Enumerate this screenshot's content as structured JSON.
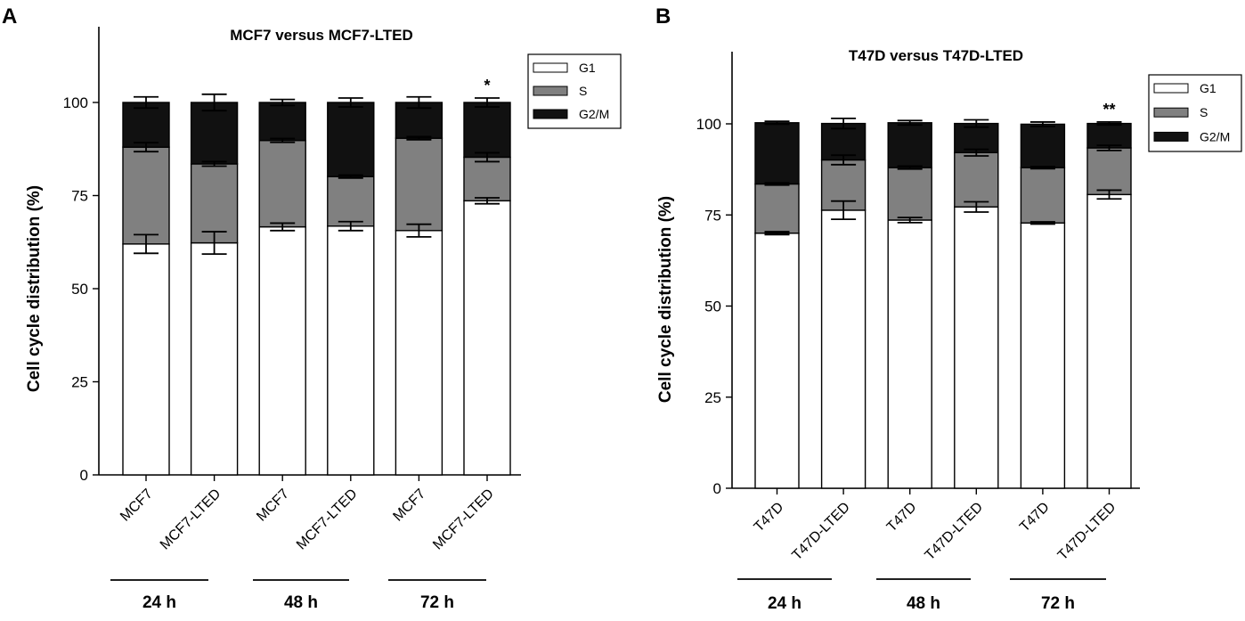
{
  "chart_data": [
    {
      "type": "bar",
      "stacked": true,
      "panel": "A",
      "title": "MCF7 versus MCF7-LTED",
      "ylabel": "Cell cycle distribution (%)",
      "xlabel": "",
      "ylim": [
        0,
        120
      ],
      "yticks": [
        "0",
        "25",
        "50",
        "75",
        "100"
      ],
      "categories": [
        "MCF7",
        "MCF7-LTED",
        "MCF7",
        "MCF7-LTED",
        "MCF7",
        "MCF7-LTED"
      ],
      "groups": [
        "24 h",
        "48 h",
        "72 h"
      ],
      "series": [
        {
          "name": "G1",
          "color": "#ffffff",
          "values": [
            62,
            62.3,
            66.6,
            66.8,
            65.6,
            73.6
          ],
          "errors": [
            2.5,
            3,
            1,
            1.2,
            1.7,
            0.8
          ]
        },
        {
          "name": "S",
          "color": "#808080",
          "values": [
            26,
            21.2,
            23.2,
            13.3,
            24.8,
            11.7
          ],
          "errors": [
            1.2,
            0.6,
            0.5,
            0.4,
            0.4,
            1.2
          ]
        },
        {
          "name": "G2/M",
          "color": "#111111",
          "values": [
            12,
            16.5,
            10.2,
            19.9,
            9.6,
            14.7
          ],
          "errors": [
            1.5,
            2.2,
            0.8,
            1.2,
            1.5,
            1.2
          ]
        }
      ],
      "significance": [
        "",
        "",
        "",
        "",
        "",
        "*"
      ]
    },
    {
      "type": "bar",
      "stacked": true,
      "panel": "B",
      "title": "T47D versus T47D-LTED",
      "ylabel": "Cell cycle distribution (%)",
      "xlabel": "",
      "ylim": [
        0,
        120
      ],
      "yticks": [
        "0",
        "25",
        "50",
        "75",
        "100"
      ],
      "categories": [
        "T47D",
        "T47D-LTED",
        "T47D",
        "T47D-LTED",
        "T47D",
        "T47D-LTED"
      ],
      "groups": [
        "24 h",
        "48 h",
        "72 h"
      ],
      "series": [
        {
          "name": "G1",
          "color": "#ffffff",
          "values": [
            70,
            76.3,
            73.6,
            77.2,
            72.8,
            80.6
          ],
          "errors": [
            0.4,
            2.5,
            0.7,
            1.4,
            0.3,
            1.2
          ]
        },
        {
          "name": "S",
          "color": "#808080",
          "values": [
            13.5,
            13.8,
            14.4,
            14.9,
            15.2,
            12.8
          ],
          "errors": [
            0.3,
            1.3,
            0.4,
            0.9,
            0.3,
            0.7
          ]
        },
        {
          "name": "G2/M",
          "color": "#111111",
          "values": [
            16.8,
            10,
            12.3,
            8,
            11.9,
            6.7
          ],
          "errors": [
            0.4,
            1.4,
            0.6,
            1,
            0.6,
            0.4
          ]
        }
      ],
      "significance": [
        "",
        "",
        "",
        "",
        "",
        "**"
      ]
    }
  ]
}
